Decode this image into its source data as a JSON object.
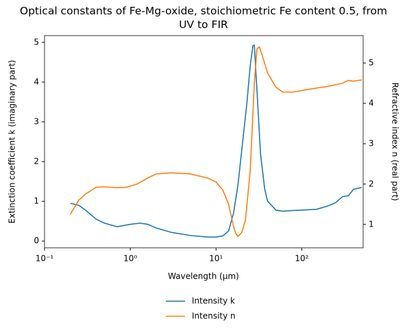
{
  "chart_data": {
    "type": "line",
    "title": "Optical constants of Fe-Mg-oxide, stoichiometric Fe content 0.5, from UV to FIR",
    "x_label": "Wavelength (μm)",
    "y_label": "Extinction coefficient k (imaginary part)",
    "y2_label": "Refractive index n (real part)",
    "x_scale": "log",
    "xlim": [
      0.1,
      520
    ],
    "xticks": [
      {
        "value": 0.1,
        "label": "10⁻¹"
      },
      {
        "value": 1,
        "label": "10⁰"
      },
      {
        "value": 10,
        "label": "10¹"
      },
      {
        "value": 100,
        "label": "10²"
      }
    ],
    "ylim": [
      -0.17,
      5.17
    ],
    "yticks": [
      0,
      1,
      2,
      3,
      4,
      5
    ],
    "y2lim": [
      0.42,
      5.68
    ],
    "y2ticks": [
      1,
      2,
      3,
      4,
      5
    ],
    "legend": "below",
    "series": [
      {
        "name": "Intensity k",
        "color": "#1f77b4",
        "x": [
          0.2,
          0.25,
          0.3,
          0.4,
          0.5,
          0.7,
          1.0,
          1.3,
          1.6,
          2,
          3,
          5,
          8,
          10,
          12,
          14,
          16,
          18,
          20,
          23,
          25,
          27,
          28,
          30,
          33,
          37,
          40,
          50,
          60,
          80,
          100,
          150,
          200,
          250,
          300,
          350,
          400,
          500
        ],
        "values": [
          0.95,
          0.9,
          0.78,
          0.55,
          0.45,
          0.36,
          0.42,
          0.45,
          0.42,
          0.33,
          0.22,
          0.14,
          0.1,
          0.1,
          0.13,
          0.25,
          0.7,
          1.4,
          2.3,
          3.5,
          4.4,
          4.92,
          4.93,
          3.8,
          2.2,
          1.3,
          1.0,
          0.78,
          0.75,
          0.77,
          0.78,
          0.8,
          0.88,
          0.97,
          1.12,
          1.14,
          1.3,
          1.35
        ]
      },
      {
        "name": "Intensity n",
        "color": "#ff7f0e",
        "axis": "y2",
        "x": [
          0.2,
          0.25,
          0.3,
          0.4,
          0.5,
          0.7,
          0.9,
          1.2,
          1.6,
          2,
          3,
          5,
          8,
          10,
          12,
          14,
          16,
          17,
          18,
          20,
          22,
          25,
          28,
          30,
          32,
          35,
          40,
          50,
          60,
          80,
          100,
          150,
          200,
          300,
          350,
          400,
          500
        ],
        "values": [
          1.25,
          1.6,
          1.75,
          1.92,
          1.93,
          1.91,
          1.92,
          2.0,
          2.15,
          2.25,
          2.28,
          2.25,
          2.15,
          2.05,
          1.85,
          1.5,
          0.95,
          0.78,
          0.7,
          0.8,
          1.1,
          2.3,
          4.5,
          5.35,
          5.4,
          5.15,
          4.75,
          4.4,
          4.28,
          4.28,
          4.32,
          4.38,
          4.42,
          4.5,
          4.57,
          4.55,
          4.58
        ]
      }
    ]
  }
}
